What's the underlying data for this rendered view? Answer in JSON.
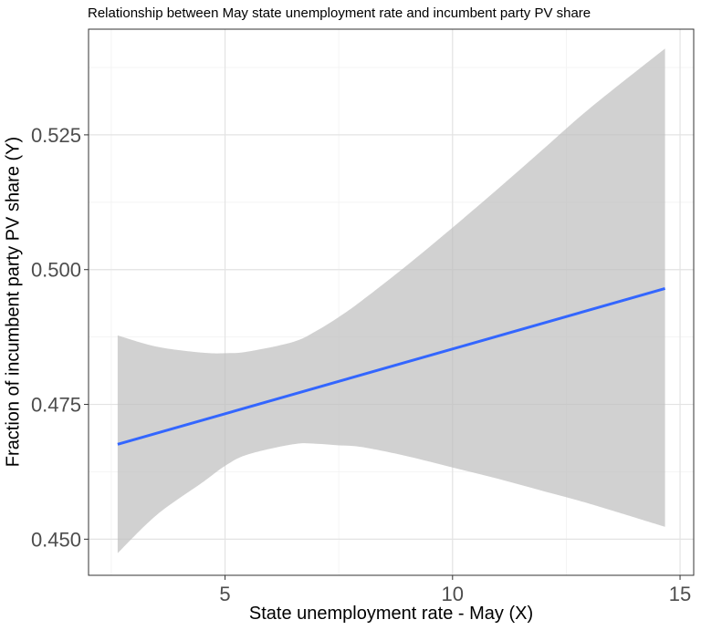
{
  "chart_data": {
    "type": "line",
    "title": "Relationship between May state unemployment rate and incumbent party PV share",
    "xlabel": "State unemployment rate - May (X)",
    "ylabel": "Fraction of incumbent party PV share (Y)",
    "xlim": [
      2.0,
      15.3
    ],
    "ylim": [
      0.4433,
      0.5446
    ],
    "x_ticks": [
      5,
      10,
      15
    ],
    "x_tick_labels": [
      "5",
      "10",
      "15"
    ],
    "y_ticks": [
      0.45,
      0.475,
      0.5,
      0.525
    ],
    "y_tick_labels": [
      "0.450",
      "0.475",
      "0.500",
      "0.525"
    ],
    "grid": true,
    "series": [
      {
        "type": "line",
        "color": "#3366ff",
        "x": [
          2.64,
          14.67
        ],
        "y": [
          0.4676,
          0.4965
        ]
      },
      {
        "type": "ribbon",
        "color": "#bfbfbf",
        "x": [
          2.64,
          3.5,
          4.5,
          5.0,
          5.5,
          6.5,
          7.0,
          7.5,
          8.0,
          9.0,
          10.0,
          11.0,
          12.0,
          13.0,
          14.67
        ],
        "upper": [
          0.4878,
          0.4857,
          0.4846,
          0.4845,
          0.4848,
          0.4866,
          0.4886,
          0.4912,
          0.4942,
          0.5008,
          0.5078,
          0.515,
          0.5224,
          0.5298,
          0.541
        ],
        "lower": [
          0.4474,
          0.4545,
          0.4605,
          0.4636,
          0.4657,
          0.4676,
          0.4677,
          0.4674,
          0.4671,
          0.4654,
          0.4633,
          0.4612,
          0.4589,
          0.4566,
          0.4523
        ]
      }
    ]
  }
}
